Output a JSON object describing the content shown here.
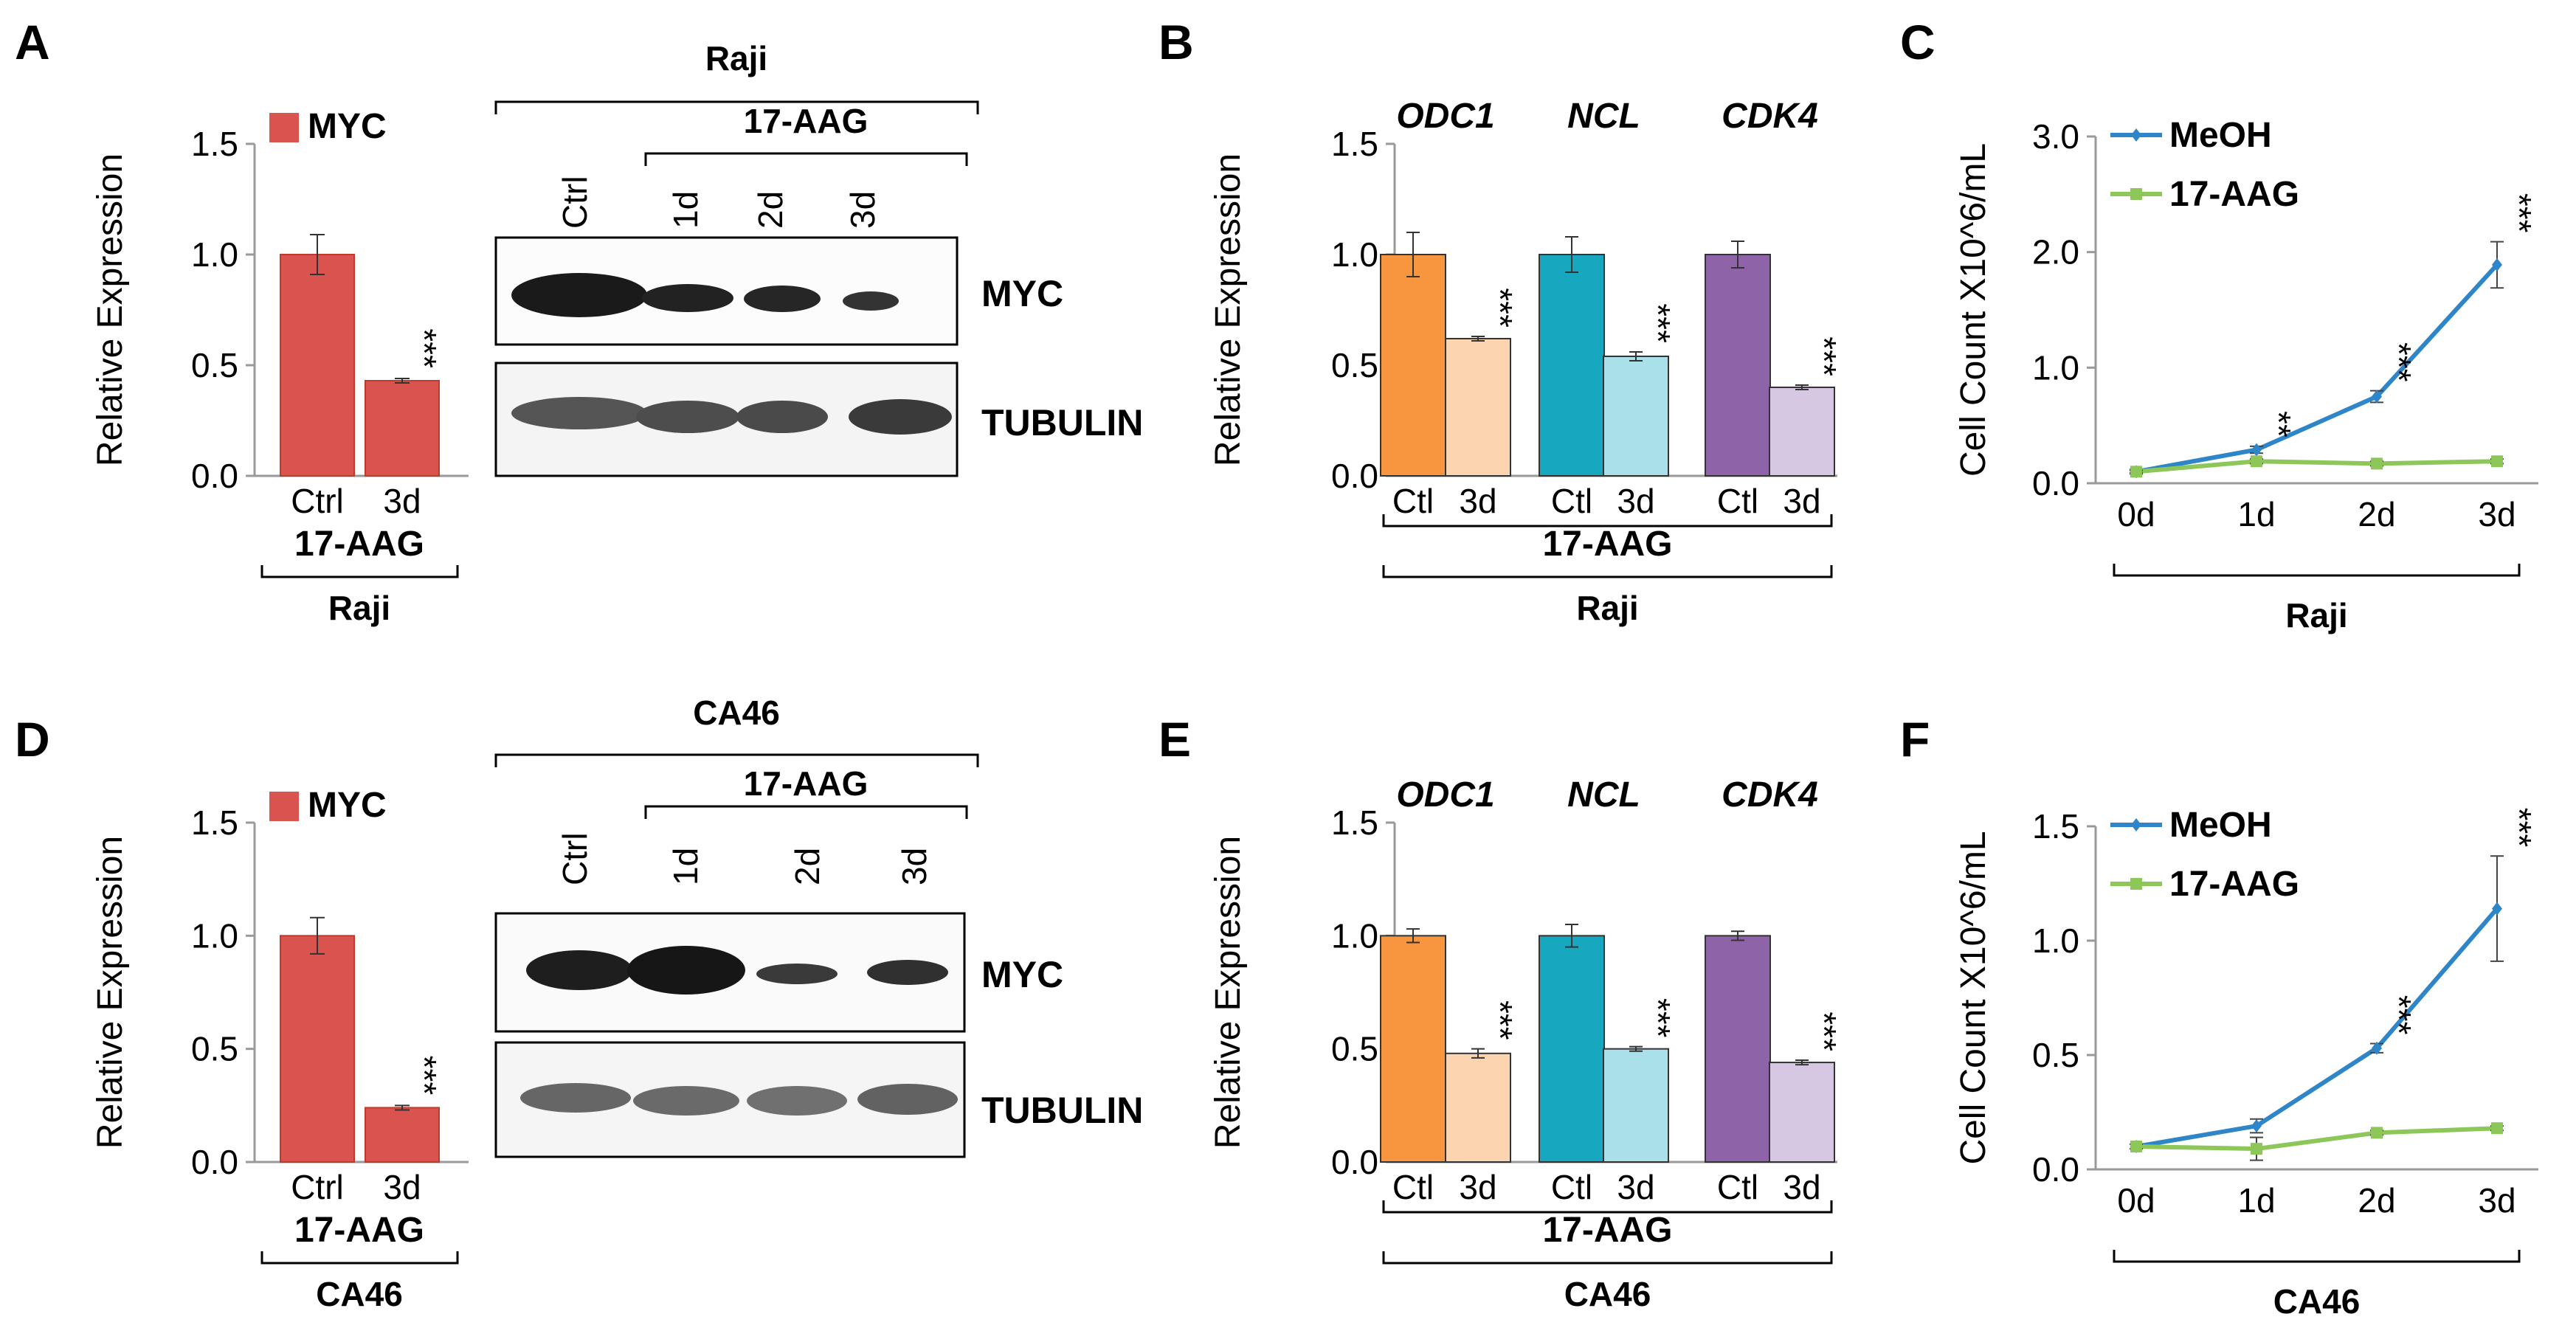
{
  "panels": {
    "a": "A",
    "b": "B",
    "c": "C",
    "d": "D",
    "e": "E",
    "f": "F"
  },
  "raji": "Raji",
  "ca46": "CA46",
  "drug": "17-AAG",
  "western_labels": {
    "myc": "MYC",
    "tubulin": "TUBULIN"
  },
  "western_lanes": [
    "Ctrl",
    "1d",
    "2d",
    "3d"
  ],
  "colors": {
    "myc": "#d9534f",
    "odc1_ctl": "#f7963e",
    "odc1_3d": "#fcd5b0",
    "ncl_ctl": "#17a8c0",
    "ncl_3d": "#a9e0ea",
    "cdk4_ctl": "#8e63a8",
    "cdk4_3d": "#d6c7e3",
    "meoh": "#2e86c8",
    "aag": "#8dc75a"
  },
  "chart_data": [
    {
      "panel": "A",
      "type": "bar",
      "ylabel": "Relative Expression",
      "ylim": [
        0,
        1.5
      ],
      "yticks": [
        "0.0",
        "0.5",
        "1.0",
        "1.5"
      ],
      "legend": "MYC",
      "categories": [
        "Ctrl",
        "3d"
      ],
      "values": [
        1.0,
        0.43
      ],
      "errors": [
        0.09,
        0.01
      ],
      "significance": [
        "",
        "***"
      ],
      "group_label": "17-AAG",
      "cell_line": "Raji"
    },
    {
      "panel": "B",
      "type": "bar",
      "ylabel": "Relative Expression",
      "ylim": [
        0,
        1.5
      ],
      "yticks": [
        "0.0",
        "0.5",
        "1.0",
        "1.5"
      ],
      "genes": [
        "ODC1",
        "NCL",
        "CDK4"
      ],
      "categories": [
        "Ctl",
        "3d",
        "Ctl",
        "3d",
        "Ctl",
        "3d"
      ],
      "values": [
        1.0,
        0.62,
        1.0,
        0.54,
        1.0,
        0.4
      ],
      "errors": [
        0.1,
        0.01,
        0.08,
        0.02,
        0.06,
        0.01
      ],
      "significance": [
        "",
        "***",
        "",
        "***",
        "",
        "***"
      ],
      "group_label": "17-AAG",
      "cell_line": "Raji"
    },
    {
      "panel": "C",
      "type": "line",
      "ylabel": "Cell Count X10^6/mL",
      "ylim": [
        0,
        3.0
      ],
      "yticks": [
        "0.0",
        "1.0",
        "2.0",
        "3.0"
      ],
      "x": [
        "0d",
        "1d",
        "2d",
        "3d"
      ],
      "series": [
        {
          "name": "MeOH",
          "values": [
            0.1,
            0.29,
            0.75,
            1.89
          ],
          "errors": [
            0.02,
            0.03,
            0.05,
            0.2
          ]
        },
        {
          "name": "17-AAG",
          "values": [
            0.1,
            0.19,
            0.17,
            0.19
          ],
          "errors": [
            0.01,
            0.02,
            0.02,
            0.02
          ]
        }
      ],
      "significance": [
        "",
        "**",
        "***",
        "***"
      ],
      "cell_line": "Raji"
    },
    {
      "panel": "D",
      "type": "bar",
      "ylabel": "Relative Expression",
      "ylim": [
        0,
        1.5
      ],
      "yticks": [
        "0.0",
        "0.5",
        "1.0",
        "1.5"
      ],
      "legend": "MYC",
      "categories": [
        "Ctrl",
        "3d"
      ],
      "values": [
        1.0,
        0.24
      ],
      "errors": [
        0.08,
        0.01
      ],
      "significance": [
        "",
        "***"
      ],
      "group_label": "17-AAG",
      "cell_line": "CA46"
    },
    {
      "panel": "E",
      "type": "bar",
      "ylabel": "Relative Expression",
      "ylim": [
        0,
        1.5
      ],
      "yticks": [
        "0.0",
        "0.5",
        "1.0",
        "1.5"
      ],
      "genes": [
        "ODC1",
        "NCL",
        "CDK4"
      ],
      "categories": [
        "Ctl",
        "3d",
        "Ctl",
        "3d",
        "Ctl",
        "3d"
      ],
      "values": [
        1.0,
        0.48,
        1.0,
        0.5,
        1.0,
        0.44
      ],
      "errors": [
        0.03,
        0.02,
        0.05,
        0.01,
        0.02,
        0.01
      ],
      "significance": [
        "",
        "***",
        "",
        "***",
        "",
        "***"
      ],
      "group_label": "17-AAG",
      "cell_line": "CA46"
    },
    {
      "panel": "F",
      "type": "line",
      "ylabel": "Cell Count X10^6/mL",
      "ylim": [
        0,
        1.5
      ],
      "yticks": [
        "0.0",
        "0.5",
        "1.0",
        "1.5"
      ],
      "x": [
        "0d",
        "1d",
        "2d",
        "3d"
      ],
      "series": [
        {
          "name": "MeOH",
          "values": [
            0.1,
            0.19,
            0.53,
            1.14
          ],
          "errors": [
            0.01,
            0.03,
            0.02,
            0.23
          ]
        },
        {
          "name": "17-AAG",
          "values": [
            0.1,
            0.09,
            0.16,
            0.18
          ],
          "errors": [
            0.01,
            0.05,
            0.01,
            0.01
          ]
        }
      ],
      "significance": [
        "",
        "",
        "***",
        "***"
      ],
      "cell_line": "CA46"
    }
  ]
}
